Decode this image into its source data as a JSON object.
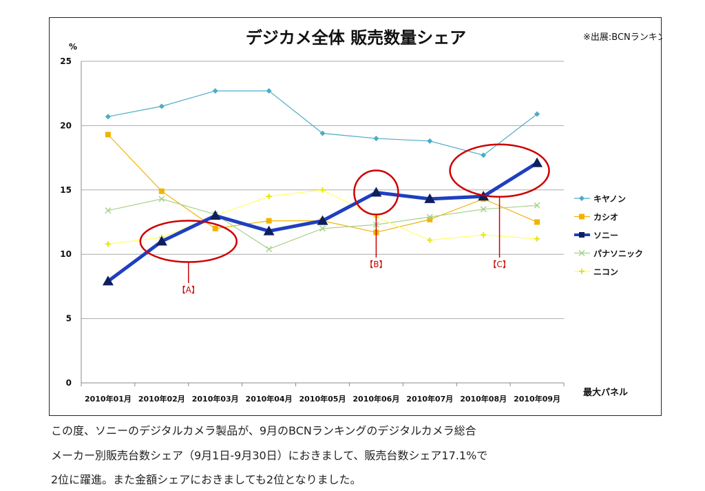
{
  "chart_data": {
    "type": "line",
    "title": "デジカメ全体 販売数量シェア",
    "source": "※出展:BCNランキング",
    "ylabel": "%",
    "xlabel": "最大パネル",
    "ylim": [
      0,
      25
    ],
    "yticks": [
      0,
      5,
      10,
      15,
      20,
      25
    ],
    "grid": true,
    "legend_position": "right",
    "categories": [
      "2010年01月",
      "2010年02月",
      "2010年03月",
      "2010年04月",
      "2010年05月",
      "2010年06月",
      "2010年07月",
      "2010年08月",
      "2010年09月"
    ],
    "series": [
      {
        "name": "キヤノン",
        "color": "#4bacc6",
        "marker": "diamond",
        "values": [
          20.7,
          21.5,
          22.7,
          22.7,
          19.4,
          19.0,
          18.8,
          17.7,
          20.9
        ]
      },
      {
        "name": "カシオ",
        "color": "#f0b400",
        "marker": "square",
        "values": [
          19.3,
          14.9,
          12.0,
          12.6,
          12.6,
          11.7,
          12.7,
          14.3,
          12.5
        ]
      },
      {
        "name": "ソニー",
        "color": "#1f3fbf",
        "marker": "triangle",
        "values": [
          7.9,
          11.0,
          13.0,
          11.8,
          12.6,
          14.8,
          14.3,
          14.5,
          17.1
        ]
      },
      {
        "name": "パナソニック",
        "color": "#a8d08d",
        "marker": "x",
        "values": [
          13.4,
          14.3,
          13.1,
          10.4,
          12.0,
          12.3,
          12.9,
          13.5,
          13.8
        ]
      },
      {
        "name": "ニコン",
        "color": "#ffff66",
        "marker": "star",
        "values": [
          10.8,
          11.3,
          13.0,
          14.5,
          15.0,
          12.9,
          11.1,
          11.5,
          11.2
        ]
      }
    ],
    "annotations": [
      {
        "label": "【A】",
        "category_index": 1.5,
        "value": 11
      },
      {
        "label": "【B】",
        "category_index": 5,
        "value": 14.8
      },
      {
        "label": "【C】",
        "category_index": 7.3,
        "value": 16.5
      }
    ]
  },
  "caption": [
    "この度、ソニーのデジタルカメラ製品が、9月のBCNランキングのデジタルカメラ総合",
    "メーカー別販売台数シェア（9月1日-9月30日）におきまして、販売台数シェア17.1%で",
    "2位に躍進。また金額シェアにおきましても2位となりました。"
  ]
}
